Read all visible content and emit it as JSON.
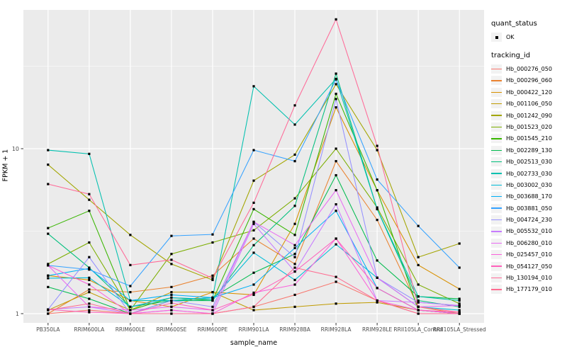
{
  "figure": {
    "panel_bg": "#EBEBEB",
    "grid_color": "#FFFFFF",
    "tick_color": "#333333",
    "tick_label_color": "#4D4D4D",
    "marker_color": "#000000"
  },
  "chart_data": {
    "type": "line",
    "title": "",
    "xlabel": "sample_name",
    "ylabel": "FPKM + 1",
    "y_scale": "log10",
    "y_ticks": [
      1,
      10
    ],
    "y_tick_labels": [
      "1",
      "10"
    ],
    "y_minor_ticks": [
      3.1623,
      31.623
    ],
    "ylim": [
      0.88,
      69
    ],
    "grid": true,
    "legend_position": "right",
    "marker": "black-square",
    "categories": [
      "PB350LA",
      "RRIM600LA",
      "RRIM600LE",
      "RRIM600SE",
      "RRIM600PE",
      "RRIM901LA",
      "RRIM928BA",
      "RRIM928LA",
      "RRIM928LE",
      "RRII105LA_Control",
      "RRII105LA_Stressed"
    ],
    "legend": {
      "quant_title": "quant_status",
      "quant_items": [
        {
          "label": "OK",
          "marker": "black-square"
        }
      ],
      "tracking_title": "tracking_id"
    },
    "series": [
      {
        "name": "Hb_000276_050",
        "color": "#F8766D",
        "values": [
          1.0,
          1.05,
          1.0,
          1.0,
          1.0,
          1.1,
          1.3,
          1.56,
          1.2,
          1.0,
          1.0
        ]
      },
      {
        "name": "Hb_000296_060",
        "color": "#EA8331",
        "values": [
          1.0,
          1.4,
          1.35,
          1.45,
          1.7,
          2.85,
          2.0,
          8.4,
          3.7,
          1.1,
          1.0
        ]
      },
      {
        "name": "Hb_000422_120",
        "color": "#D89000",
        "values": [
          1.7,
          1.6,
          1.2,
          1.1,
          1.35,
          1.3,
          3.5,
          17.8,
          5.6,
          1.97,
          1.41
        ]
      },
      {
        "name": "Hb_001106_050",
        "color": "#C09B00",
        "values": [
          1.05,
          1.35,
          1.05,
          1.35,
          1.35,
          1.05,
          1.1,
          1.15,
          1.17,
          1.05,
          1.0
        ]
      },
      {
        "name": "Hb_001242_090",
        "color": "#A3A500",
        "values": [
          8.0,
          4.9,
          3.0,
          2.0,
          1.6,
          6.4,
          9.2,
          24.6,
          9.8,
          2.2,
          2.66
        ]
      },
      {
        "name": "Hb_001523_020",
        "color": "#7CAE00",
        "values": [
          2.0,
          2.7,
          1.05,
          2.3,
          2.7,
          3.2,
          5.0,
          10.0,
          4.4,
          1.5,
          1.15
        ]
      },
      {
        "name": "Hb_001545_210",
        "color": "#39B600",
        "values": [
          3.3,
          4.2,
          1.05,
          1.25,
          1.2,
          4.3,
          3.0,
          21.5,
          5.6,
          1.05,
          1.0
        ]
      },
      {
        "name": "Hb_002289_130",
        "color": "#00BB4E",
        "values": [
          1.45,
          1.23,
          1.0,
          1.2,
          1.25,
          1.77,
          2.3,
          6.9,
          2.1,
          1.27,
          1.23
        ]
      },
      {
        "name": "Hb_002513_030",
        "color": "#00BF7D",
        "values": [
          3.05,
          1.9,
          1.1,
          1.2,
          1.2,
          2.6,
          4.5,
          28.5,
          4.3,
          1.2,
          1.1
        ]
      },
      {
        "name": "Hb_002733_030",
        "color": "#00C0AF",
        "values": [
          9.8,
          9.3,
          1.2,
          1.2,
          1.25,
          23.9,
          14.0,
          26.5,
          4.3,
          1.27,
          1.2
        ]
      },
      {
        "name": "Hb_003002_030",
        "color": "#00BCD8",
        "values": [
          1.64,
          1.65,
          1.1,
          1.25,
          1.22,
          2.34,
          1.6,
          2.63,
          1.65,
          1.1,
          1.05
        ]
      },
      {
        "name": "Hb_003688_170",
        "color": "#00B0F6",
        "values": [
          1.7,
          1.88,
          1.2,
          1.3,
          1.25,
          1.5,
          2.5,
          4.2,
          1.43,
          1.05,
          1.0
        ]
      },
      {
        "name": "Hb_003881_050",
        "color": "#35A2FF",
        "values": [
          1.96,
          1.85,
          1.47,
          2.96,
          3.02,
          9.8,
          8.4,
          26.3,
          6.5,
          3.4,
          1.9
        ]
      },
      {
        "name": "Hb_004724_230",
        "color": "#9590FF",
        "values": [
          1.06,
          2.2,
          1.0,
          1.2,
          1.1,
          3.6,
          2.2,
          20.0,
          1.65,
          1.17,
          1.12
        ]
      },
      {
        "name": "Hb_005532_010",
        "color": "#C77CFF",
        "values": [
          1.06,
          1.1,
          1.0,
          1.05,
          1.0,
          3.5,
          1.8,
          4.6,
          1.2,
          1.17,
          1.12
        ]
      },
      {
        "name": "Hb_006280_010",
        "color": "#E76BF3",
        "values": [
          1.96,
          1.1,
          1.05,
          1.1,
          1.05,
          3.6,
          2.6,
          5.6,
          1.65,
          1.1,
          1.12
        ]
      },
      {
        "name": "Hb_025457_010",
        "color": "#FA62DB",
        "values": [
          1.96,
          1.5,
          1.0,
          1.05,
          1.0,
          1.34,
          1.5,
          2.85,
          1.2,
          1.05,
          1.0
        ]
      },
      {
        "name": "Hb_054127_050",
        "color": "#FF62BC",
        "values": [
          1.06,
          1.02,
          1.0,
          1.16,
          1.05,
          1.31,
          1.8,
          2.85,
          1.43,
          1.05,
          1.02
        ]
      },
      {
        "name": "Hb_130194_010",
        "color": "#FF6A98",
        "values": [
          6.1,
          5.3,
          1.97,
          2.12,
          1.64,
          4.7,
          18.3,
          60.8,
          10.4,
          1.1,
          1.02
        ]
      },
      {
        "name": "Hb_177179_010",
        "color": "#FF6C91",
        "values": [
          1.05,
          1.15,
          1.0,
          1.0,
          1.0,
          1.1,
          1.9,
          1.67,
          1.2,
          1.0,
          1.0
        ]
      }
    ]
  }
}
